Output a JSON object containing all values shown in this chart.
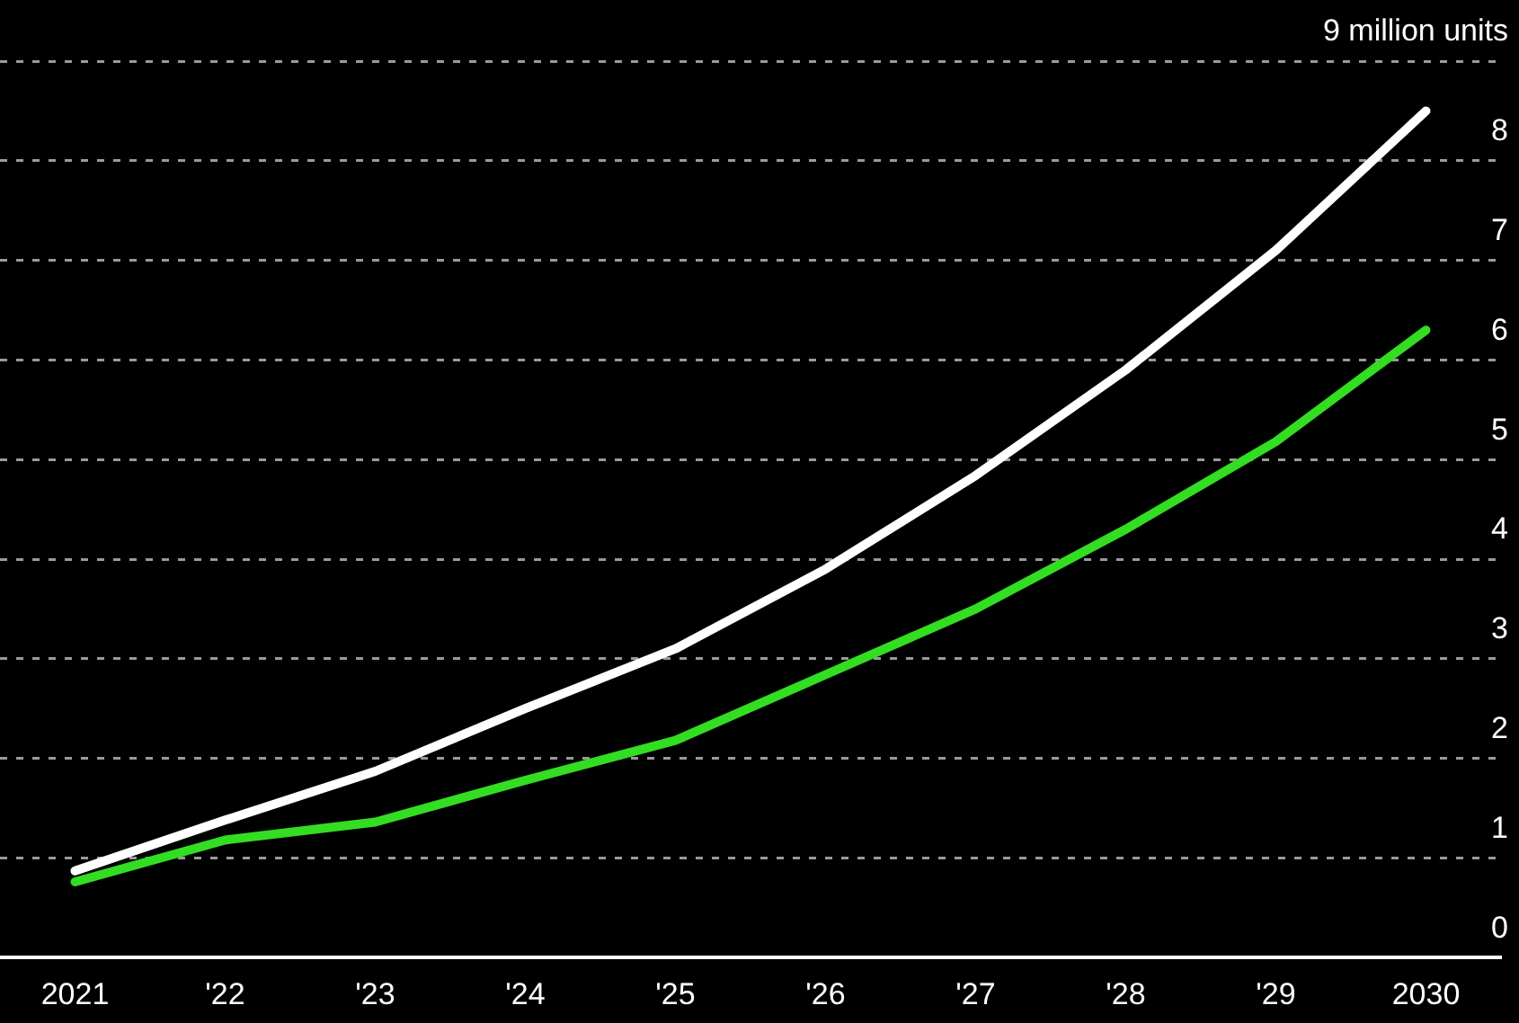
{
  "chart_data": {
    "type": "line",
    "categories": [
      "2021",
      "'22",
      "'23",
      "'24",
      "'25",
      "'26",
      "'27",
      "'28",
      "'29",
      "2030"
    ],
    "series": [
      {
        "color": "#ffffff",
        "values": [
          0.87,
          1.38,
          1.87,
          2.5,
          3.1,
          3.9,
          4.84,
          5.9,
          7.1,
          8.5
        ]
      },
      {
        "color": "#33dd22",
        "values": [
          0.76,
          1.18,
          1.36,
          1.78,
          2.18,
          2.84,
          3.5,
          4.3,
          5.18,
          6.3
        ]
      }
    ],
    "ylim": [
      0,
      9
    ],
    "yticks": [
      0,
      1,
      2,
      3,
      4,
      5,
      6,
      7,
      8,
      {
        "value": 9,
        "label": "9 million units"
      }
    ],
    "grid": "y",
    "legend": false,
    "marker": "none",
    "line_style": "solid"
  }
}
